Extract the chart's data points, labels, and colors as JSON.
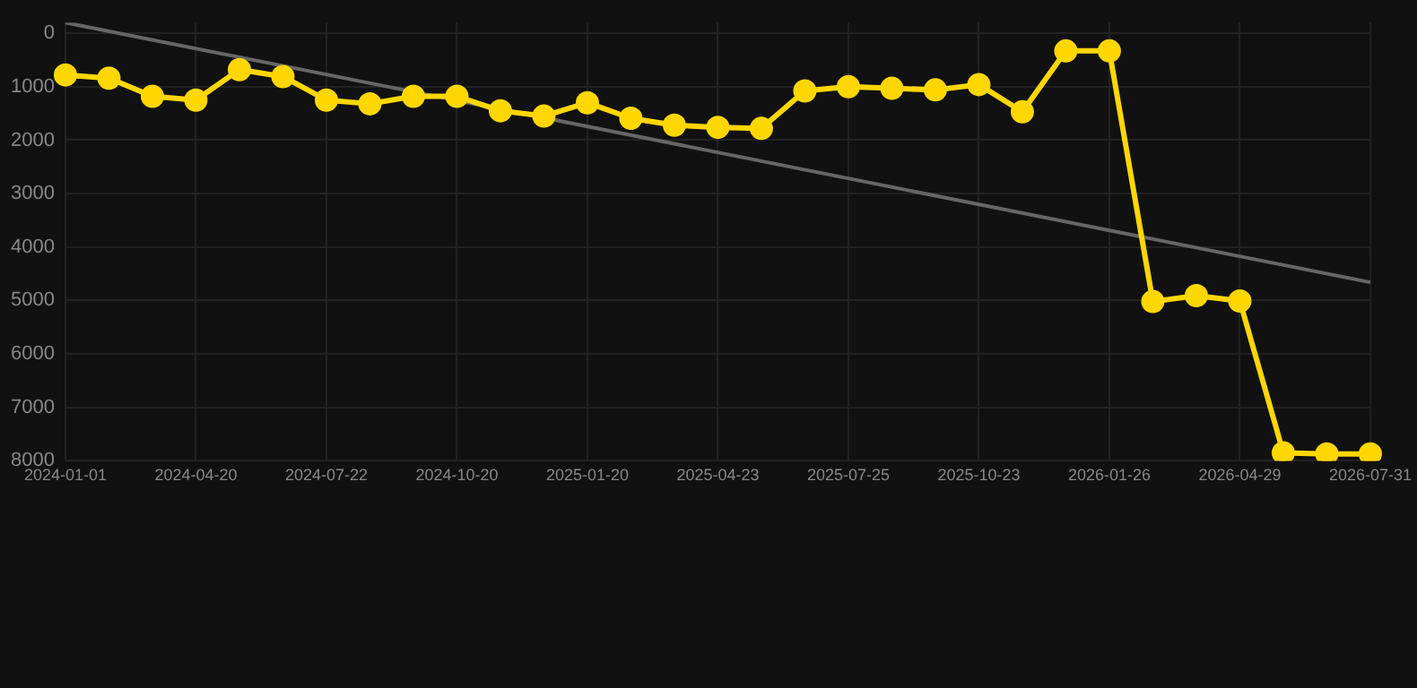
{
  "chart_data": {
    "type": "line",
    "categories": [
      "2024-01-01",
      null,
      null,
      "2024-04-20",
      null,
      null,
      "2024-07-22",
      null,
      null,
      "2024-10-20",
      null,
      null,
      "2025-01-20",
      null,
      null,
      "2025-04-23",
      null,
      null,
      "2025-07-25",
      null,
      null,
      "2025-10-23",
      null,
      null,
      "2026-01-26",
      null,
      null,
      "2026-04-29",
      null,
      null,
      "2026-07-31"
    ],
    "series": [
      {
        "color": "#ffd700",
        "marker": "circle",
        "values": [
          780,
          840,
          1180,
          1250,
          680,
          810,
          1250,
          1320,
          1180,
          1180,
          1450,
          1550,
          1300,
          1590,
          1720,
          1760,
          1780,
          1080,
          1000,
          1030,
          1060,
          960,
          1470,
          330,
          330,
          5020,
          4910,
          5010,
          7850,
          7870,
          7870
        ]
      },
      {
        "type": "line",
        "color": "#666666",
        "marker": "none",
        "values": [
          -200,
          null,
          null,
          null,
          null,
          null,
          null,
          null,
          null,
          null,
          null,
          null,
          null,
          null,
          null,
          null,
          null,
          null,
          null,
          null,
          null,
          null,
          null,
          null,
          null,
          null,
          null,
          null,
          null,
          null,
          4660
        ]
      }
    ],
    "ylim": [
      8000,
      -200
    ],
    "yticks": [
      0,
      1000,
      2000,
      3000,
      4000,
      5000,
      6000,
      7000,
      8000
    ],
    "grid": true,
    "legend": false
  }
}
